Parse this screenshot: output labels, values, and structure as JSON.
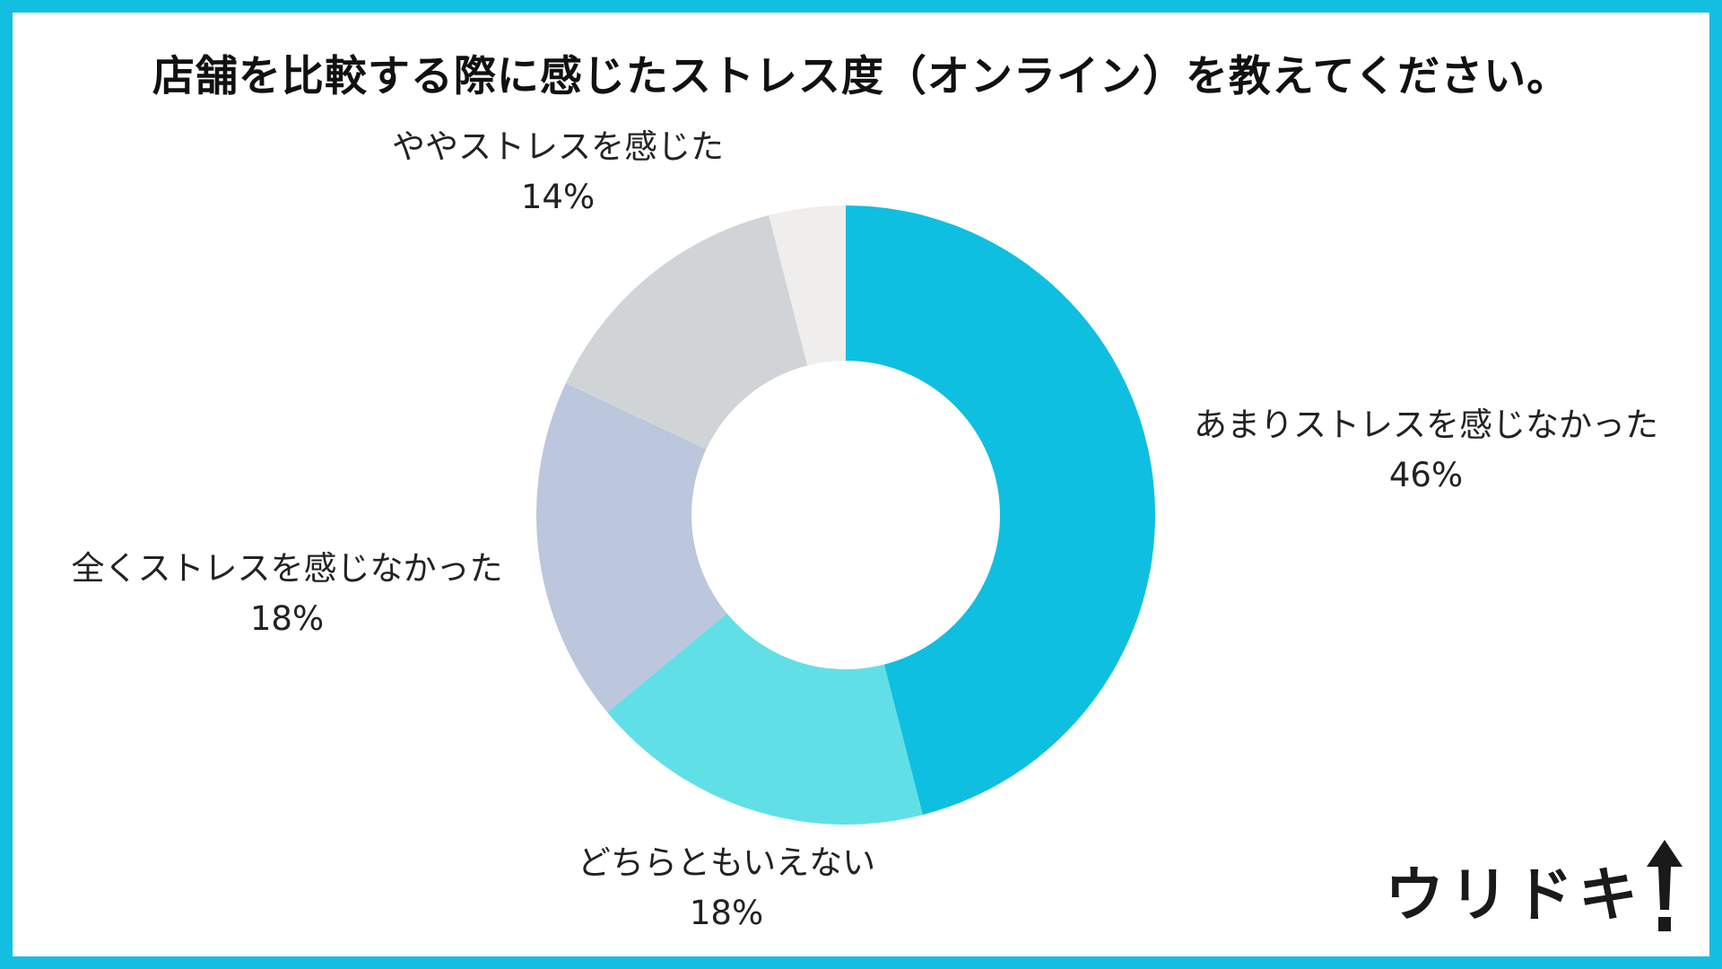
{
  "title": "店舗を比較する際に感じたストレス度（オンライン）を教えてください。",
  "logo": {
    "text": "ウリドキ"
  },
  "colors": {
    "frame": "#13bfe0",
    "slices": [
      "#0fbfe0",
      "#60e0e6",
      "#bcc6dd",
      "#d0d4d6",
      "#efeeec"
    ]
  },
  "chart_data": {
    "type": "pie",
    "donut": true,
    "title": "店舗を比較する際に感じたストレス度（オンライン）を教えてください。",
    "slices": [
      {
        "label": "あまりストレスを感じなかった",
        "percent_label": "46%",
        "value": 46
      },
      {
        "label": "どちらともいえない",
        "percent_label": "18%",
        "value": 18
      },
      {
        "label": "全くストレスを感じなかった",
        "percent_label": "18%",
        "value": 18
      },
      {
        "label": "ややストレスを感じた",
        "percent_label": "14%",
        "value": 14
      },
      {
        "label": "",
        "percent_label": "",
        "value": 4
      }
    ]
  }
}
